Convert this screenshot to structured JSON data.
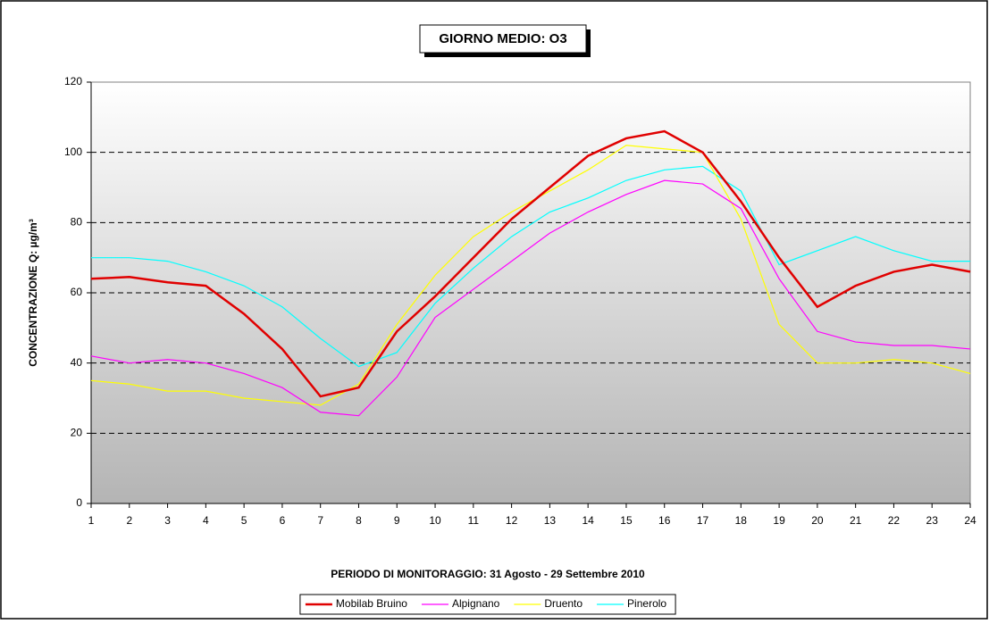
{
  "chart_data": {
    "type": "line",
    "title": "GIORNO MEDIO: O3",
    "x_label": "PERIODO DI MONITORAGGIO: 31 Agosto - 29 Settembre 2010",
    "y_label": "CONCENTRAZIONE Q: µg/m³",
    "x": [
      1,
      2,
      3,
      4,
      5,
      6,
      7,
      8,
      9,
      10,
      11,
      12,
      13,
      14,
      15,
      16,
      17,
      18,
      19,
      20,
      21,
      22,
      23,
      24
    ],
    "xlim": [
      1,
      24
    ],
    "xticks": [
      1,
      2,
      3,
      4,
      5,
      6,
      7,
      8,
      9,
      10,
      11,
      12,
      13,
      14,
      15,
      16,
      17,
      18,
      19,
      20,
      21,
      22,
      23,
      24
    ],
    "ylim": [
      0,
      120
    ],
    "yticks": [
      0,
      20,
      40,
      60,
      80,
      100,
      120
    ],
    "grid": true,
    "legend": "bottom",
    "series": [
      {
        "name": "Mobilab Bruino",
        "color": "#e00000",
        "values": [
          64,
          64.5,
          63,
          62,
          54,
          44,
          30.5,
          33,
          49,
          59,
          70,
          81,
          90,
          99,
          104,
          106,
          100,
          86,
          70,
          56,
          62,
          66,
          68,
          66
        ]
      },
      {
        "name": "Alpignano",
        "color": "#ff00ff",
        "values": [
          42,
          40,
          41,
          40,
          37,
          33,
          26,
          25,
          36,
          53,
          61,
          69,
          77,
          83,
          88,
          92,
          91,
          84,
          64,
          49,
          46,
          45,
          45,
          44
        ]
      },
      {
        "name": "Druento",
        "color": "#ffff00",
        "values": [
          35,
          34,
          32,
          32,
          30,
          29,
          28,
          34,
          51,
          65,
          76,
          83,
          89,
          95,
          102,
          101,
          100,
          81,
          51,
          40,
          40,
          41,
          40,
          37
        ]
      },
      {
        "name": "Pinerolo",
        "color": "#00ffff",
        "values": [
          70,
          70,
          69,
          66,
          62,
          56,
          47,
          39,
          43,
          57,
          67,
          76,
          83,
          87,
          92,
          95,
          96,
          89,
          68,
          72,
          76,
          72,
          69,
          69
        ]
      }
    ]
  }
}
